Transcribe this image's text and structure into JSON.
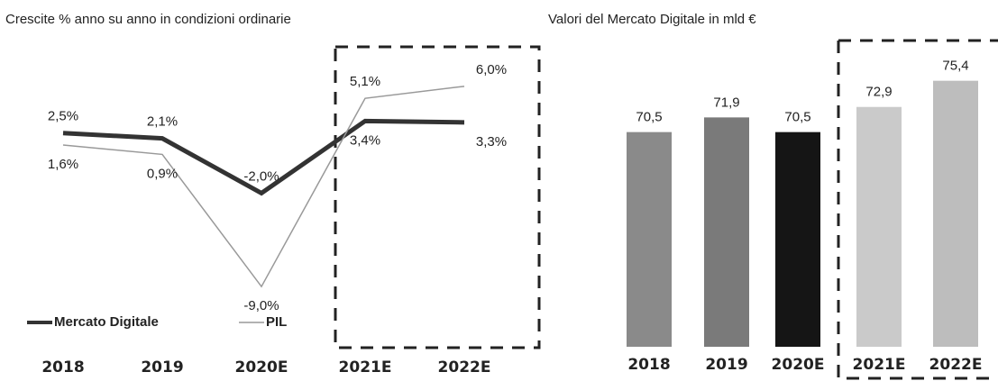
{
  "chart_data": [
    {
      "type": "line",
      "title": "Crescite % anno su anno in condizioni ordinarie",
      "categories": [
        "2018",
        "2019",
        "2020E",
        "2021E",
        "2022E"
      ],
      "ylim": [
        -10,
        7
      ],
      "series": [
        {
          "name": "Mercato Digitale",
          "color": "#333333",
          "values": [
            2.5,
            2.1,
            -2.0,
            3.4,
            3.3
          ],
          "value_labels": [
            "2,5%",
            "2,1%",
            "-2,0%",
            "3,4%",
            "3,3%"
          ]
        },
        {
          "name": "PIL",
          "color": "#999999",
          "values": [
            1.6,
            0.9,
            -9.0,
            5.1,
            6.0
          ],
          "value_labels": [
            "1,6%",
            "0,9%",
            "-9,0%",
            "5,1%",
            "6,0%"
          ]
        }
      ]
    },
    {
      "type": "bar",
      "title": "Valori del Mercato Digitale in mld €",
      "categories": [
        "2018",
        "2019",
        "2020E",
        "2021E",
        "2022E"
      ],
      "values": [
        70.5,
        71.9,
        70.5,
        72.9,
        75.4
      ],
      "value_labels": [
        "70,5",
        "71,9",
        "70,5",
        "72,9",
        "75,4"
      ],
      "colors": [
        "#8a8a8a",
        "#7a7a7a",
        "#151515",
        "#cacaca",
        "#bdbdbd"
      ],
      "ylim": [
        50,
        79.5
      ]
    }
  ]
}
